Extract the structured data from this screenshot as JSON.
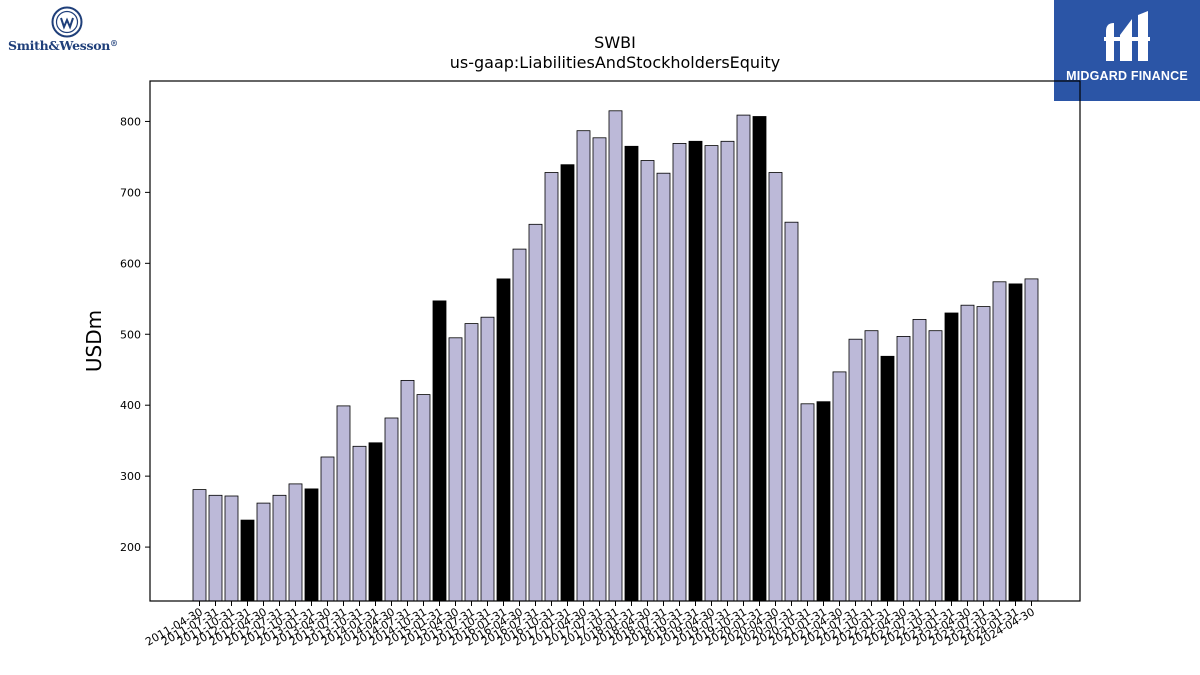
{
  "logos": {
    "left_brand": "Smith&Wesson",
    "left_registered": "®",
    "right_brand": "MIDGARD FINANCE"
  },
  "colors": {
    "bar_default": "#bcb9d8",
    "bar_highlight": "#000000",
    "bar_edge": "#000000",
    "right_logo_bg": "#2b55a6",
    "left_logo_text": "#1f3f7a"
  },
  "chart_data": {
    "type": "bar",
    "title": "SWBI",
    "subtitle": "us-gaap:LiabilitiesAndStockholdersEquity",
    "xlabel": "",
    "ylabel": "USDm",
    "ylim": [
      124,
      857
    ],
    "yticks": [
      200,
      300,
      400,
      500,
      600,
      700,
      800
    ],
    "grid": false,
    "legend": "none",
    "categories": [
      "2011-04-30",
      "2011-07-31",
      "2011-10-31",
      "2012-01-31",
      "2012-04-30",
      "2012-07-31",
      "2012-10-31",
      "2013-01-31",
      "2013-04-30",
      "2013-07-31",
      "2013-10-31",
      "2014-01-31",
      "2014-04-30",
      "2014-07-31",
      "2014-10-31",
      "2015-01-31",
      "2015-04-30",
      "2015-07-31",
      "2015-10-31",
      "2016-01-31",
      "2016-04-30",
      "2016-07-31",
      "2016-10-31",
      "2017-01-31",
      "2017-04-30",
      "2017-07-31",
      "2017-10-31",
      "2018-01-31",
      "2018-04-30",
      "2018-07-31",
      "2018-10-31",
      "2019-01-31",
      "2019-04-30",
      "2019-07-31",
      "2019-10-31",
      "2020-01-31",
      "2020-04-30",
      "2020-07-31",
      "2020-10-31",
      "2021-01-31",
      "2021-04-30",
      "2021-07-31",
      "2021-10-31",
      "2022-01-31",
      "2022-04-30",
      "2022-07-31",
      "2022-10-31",
      "2023-01-31",
      "2023-04-30",
      "2023-07-31",
      "2023-10-31",
      "2024-01-31",
      "2024-04-30"
    ],
    "values": [
      281,
      273,
      272,
      238,
      262,
      273,
      289,
      282,
      327,
      399,
      342,
      347,
      382,
      435,
      415,
      547,
      495,
      515,
      524,
      578,
      620,
      655,
      728,
      739,
      787,
      777,
      815,
      765,
      745,
      727,
      769,
      772,
      766,
      772,
      809,
      807,
      728,
      658,
      402,
      405,
      447,
      493,
      505,
      469,
      497,
      521,
      505,
      530,
      541,
      539,
      574,
      571,
      578
    ],
    "highlight": [
      false,
      false,
      false,
      true,
      false,
      false,
      false,
      true,
      false,
      false,
      false,
      true,
      false,
      false,
      false,
      true,
      false,
      false,
      false,
      true,
      false,
      false,
      false,
      true,
      false,
      false,
      false,
      true,
      false,
      false,
      false,
      true,
      false,
      false,
      false,
      true,
      false,
      false,
      false,
      true,
      false,
      false,
      false,
      true,
      false,
      false,
      false,
      true,
      false,
      false,
      false,
      true,
      false
    ]
  }
}
